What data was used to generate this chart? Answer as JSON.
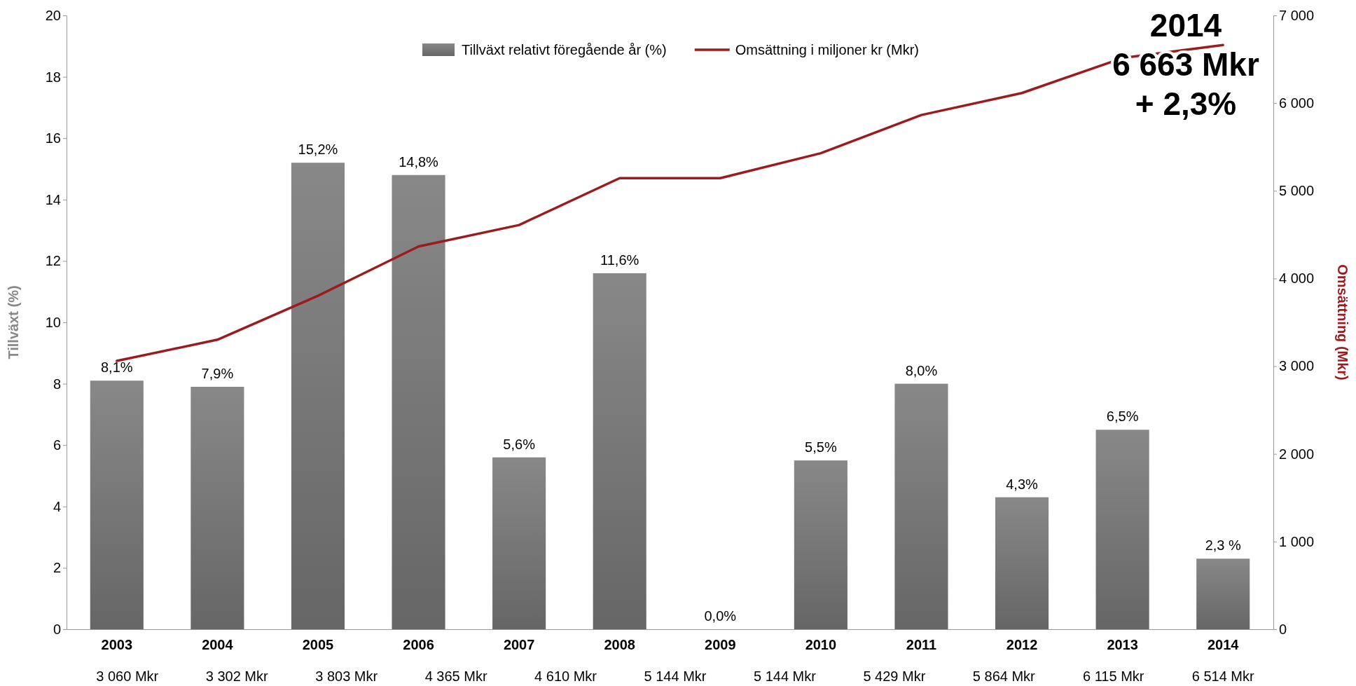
{
  "chart_data": {
    "type": "bar",
    "categories": [
      "2003",
      "2004",
      "2005",
      "2006",
      "2007",
      "2008",
      "2009",
      "2010",
      "2011",
      "2012",
      "2013",
      "2014"
    ],
    "series": [
      {
        "name": "Tillväxt relativt föregående år (%)",
        "color": "#7a7a7a",
        "values": [
          8.1,
          7.9,
          15.2,
          14.8,
          5.6,
          11.6,
          0.0,
          5.5,
          8.0,
          4.3,
          6.5,
          2.3
        ],
        "value_labels": [
          "8,1%",
          "7,9%",
          "15,2%",
          "14,8%",
          "5,6%",
          "11,6%",
          "0,0%",
          "5,5%",
          "8,0%",
          "4,3%",
          "6,5%",
          "2,3 %"
        ]
      },
      {
        "name": "Omsättning i miljoner kr (Mkr)",
        "type": "line",
        "axis": "y2",
        "color": "#9b1b1e",
        "values": [
          3060,
          3302,
          3803,
          4365,
          4610,
          5144,
          5144,
          5429,
          5864,
          6115,
          6514,
          6663
        ]
      }
    ],
    "ylabel": "Tillväxt (%)",
    "y2label": "Omsättning (Mkr)",
    "ylim": [
      0,
      20
    ],
    "yticks": [
      0,
      2,
      4,
      6,
      8,
      10,
      12,
      14,
      16,
      18,
      20
    ],
    "y2lim": [
      0,
      7000
    ],
    "y2ticks": [
      0,
      {
        "value": 1000,
        "label": "1 000"
      },
      {
        "value": 2000,
        "label": "2 000"
      },
      {
        "value": 3000,
        "label": "3 000"
      },
      {
        "value": 4000,
        "label": "4 000"
      },
      {
        "value": 5000,
        "label": "5 000"
      },
      {
        "value": 6000,
        "label": "6 000"
      },
      {
        "value": 7000,
        "label": "7 000"
      }
    ],
    "legend": "top",
    "annotations": [
      "2014\n6 663 Mkr\n+ 2,3%",
      "3 060 Mkr",
      "3 302 Mkr",
      "3 803 Mkr",
      "4 365 Mkr",
      "4 610 Mkr",
      "5 144 Mkr",
      "5 144 Mkr",
      "5 429 Mkr",
      "5 864 Mkr",
      "6 115 Mkr",
      "6 514 Mkr"
    ]
  }
}
